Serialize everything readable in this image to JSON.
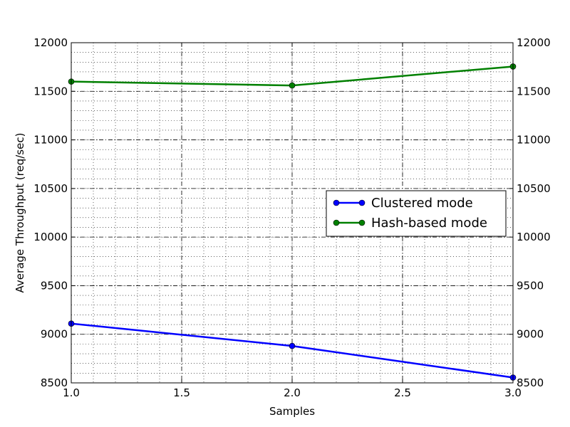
{
  "chart_data": {
    "type": "line",
    "title": "",
    "xlabel": "Samples",
    "ylabel": "Average Throughput (req/sec)",
    "xlim": [
      1.0,
      3.0
    ],
    "ylim": [
      8500,
      12000
    ],
    "x_ticks": [
      1.0,
      1.5,
      2.0,
      2.5,
      3.0
    ],
    "x_tick_labels": [
      "1.0",
      "1.5",
      "2.0",
      "2.5",
      "3.0"
    ],
    "y_ticks": [
      8500,
      9000,
      9500,
      10000,
      10500,
      11000,
      11500,
      12000
    ],
    "y_tick_labels": [
      "8500",
      "9000",
      "9500",
      "10000",
      "10500",
      "11000",
      "11500",
      "12000"
    ],
    "y_axis_right_mirrored": true,
    "grid": true,
    "legend_position": "center-right",
    "x": [
      1.0,
      2.0,
      3.0
    ],
    "series": [
      {
        "name": "Clustered mode",
        "color": "#0000ff",
        "values": [
          9110,
          8880,
          8555
        ]
      },
      {
        "name": "Hash-based mode",
        "color": "#008000",
        "values": [
          11600,
          11560,
          11755
        ]
      }
    ]
  }
}
